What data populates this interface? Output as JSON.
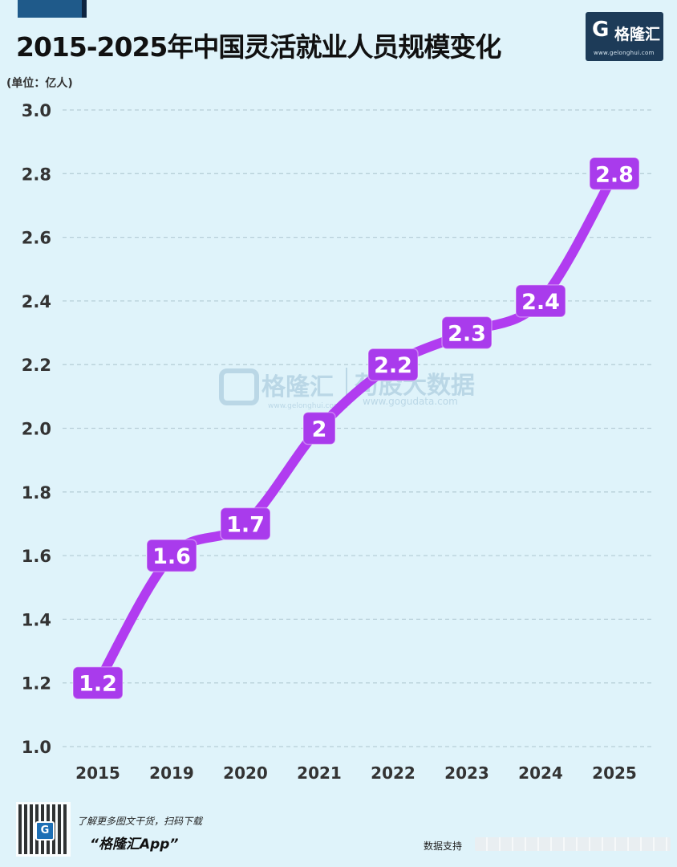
{
  "header": {
    "title": "2015-2025年中国灵活就业人员规模变化",
    "unit_label": "(单位：亿人)"
  },
  "logo": {
    "mark": "G",
    "name": "格隆汇",
    "url": "www.gelonghui.com"
  },
  "watermark": {
    "left_name": "格隆汇",
    "left_url": "www.gelonghui.com",
    "right_name": "苟股大数据",
    "right_url": "www.gogudata.com"
  },
  "footer": {
    "promo": "了解更多图文干货，扫码下载",
    "app_name": "“格隆汇App”",
    "source_prefix": "数据支持"
  },
  "colors": {
    "background": "#dff3fa",
    "line": "#b13cf0",
    "label_box": "#a93bec",
    "grid": "#b7cfd8",
    "axis_text": "#333333",
    "logo_bg": "#1d3b58"
  },
  "chart_data": {
    "type": "line",
    "title": "2015-2025年中国灵活就业人员规模变化",
    "ylabel": "(单位：亿人)",
    "xlabel": "",
    "categories": [
      "2015",
      "2019",
      "2020",
      "2021",
      "2022",
      "2023",
      "2024",
      "2025"
    ],
    "values": [
      1.2,
      1.6,
      1.7,
      2,
      2.2,
      2.3,
      2.4,
      2.8
    ],
    "data_labels": [
      "1.2",
      "1.6",
      "1.7",
      "2",
      "2.2",
      "2.3",
      "2.4",
      "2.8"
    ],
    "ylim": [
      1.0,
      3.0
    ],
    "yticks": [
      "1.0",
      "1.2",
      "1.4",
      "1.6",
      "1.8",
      "2.0",
      "2.2",
      "2.4",
      "2.6",
      "2.8",
      "3.0"
    ],
    "grid": true,
    "grid_style": "dashed",
    "smooth": true
  }
}
